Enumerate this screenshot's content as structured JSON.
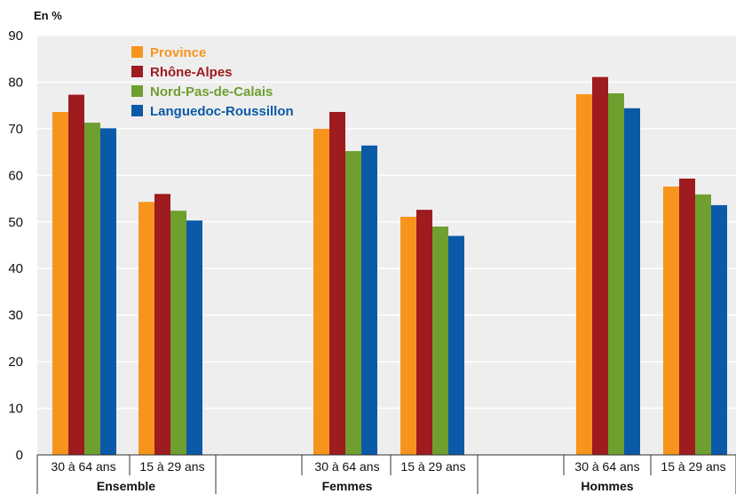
{
  "chart_data": {
    "type": "bar",
    "unit_label": "En %",
    "y_ticks": [
      "0",
      "10",
      "20",
      "30",
      "40",
      "50",
      "60",
      "70",
      "80",
      "90"
    ],
    "ylim": [
      0,
      90
    ],
    "grid": true,
    "legend_position": "top-left",
    "groups": [
      {
        "label": "Ensemble",
        "subcategories": [
          {
            "label": "30 à 64 ans",
            "values": [
              73.6,
              77.3,
              71.3,
              70.1
            ]
          },
          {
            "label": "15 à 29 ans",
            "values": [
              54.3,
              56.0,
              52.4,
              50.3
            ]
          }
        ]
      },
      {
        "label": "Femmes",
        "subcategories": [
          {
            "label": "30 à 64 ans",
            "values": [
              70.0,
              73.6,
              65.2,
              66.4
            ]
          },
          {
            "label": "15 à 29 ans",
            "values": [
              51.1,
              52.6,
              49.0,
              47.0
            ]
          }
        ]
      },
      {
        "label": "Hommes",
        "subcategories": [
          {
            "label": "30 à 64 ans",
            "values": [
              77.4,
              81.1,
              77.6,
              74.4
            ]
          },
          {
            "label": "15 à 29 ans",
            "values": [
              57.6,
              59.3,
              55.9,
              53.6
            ]
          }
        ]
      }
    ],
    "series": [
      {
        "name": "Province",
        "color": "#f7941d"
      },
      {
        "name": "Rhône-Alpes",
        "color": "#9e1b20"
      },
      {
        "name": "Nord-Pas-de-Calais",
        "color": "#6e9f2f"
      },
      {
        "name": "Languedoc-Roussillon",
        "color": "#0b5aa8"
      }
    ],
    "plot_background": "#eeeeee",
    "grid_color": "#ffffff"
  }
}
